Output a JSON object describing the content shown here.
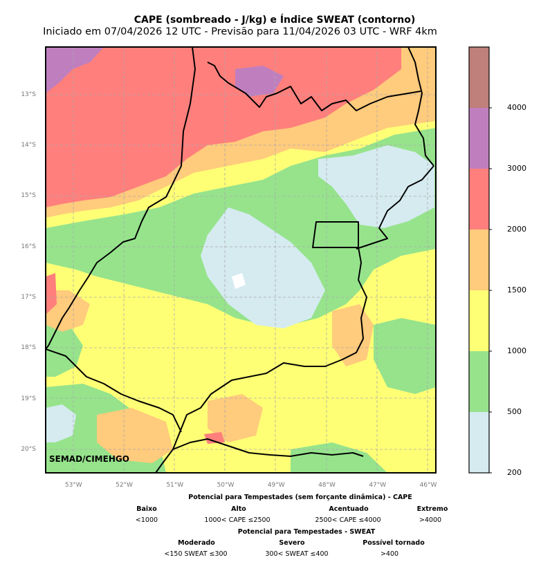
{
  "title": "CAPE (sombreado - J/kg) e Índice SWEAT (contorno)",
  "subtitle": "Iniciado em 07/04/2026 12 UTC - Previsão para 11/04/2026 03 UTC - WRF 4km",
  "watermark": "SEMAD/CIMEHGO",
  "map": {
    "lat_labels": [
      "13°S",
      "14°S",
      "15°S",
      "16°S",
      "17°S",
      "18°S",
      "19°S",
      "20°S"
    ],
    "lon_labels": [
      "53°W",
      "52°W",
      "51°W",
      "50°W",
      "49°W",
      "48°W",
      "47°W",
      "46°W"
    ],
    "lat_values": [
      -13,
      -14,
      -15,
      -16,
      -17,
      -18,
      -19,
      -20
    ],
    "lon_values": [
      -53,
      -52,
      -51,
      -50,
      -49,
      -48,
      -47,
      -46
    ],
    "extent": {
      "lon_min": -53.55,
      "lon_max": -45.85,
      "lat_min": -20.45,
      "lat_max": -12.05
    },
    "gridlines": "dashed gray"
  },
  "colorbar": {
    "levels": [
      200,
      500,
      1000,
      1500,
      2000,
      3000,
      4000
    ],
    "tick_labels": [
      "200",
      "500",
      "1000",
      "1500",
      "2000",
      "3000",
      "4000"
    ],
    "colors": [
      "#d5ebf0",
      "#96e38c",
      "#ffff76",
      "#ffcb7c",
      "#ff7f7c",
      "#bf7fbf",
      "#bf7f7a"
    ]
  },
  "legend": {
    "cape_title": "Potencial para Tempestades (sem forçante dinâmica) - CAPE",
    "cape": [
      {
        "name": "Baixo",
        "range": "<1000"
      },
      {
        "name": "Alto",
        "range": "1000< CAPE ≤2500"
      },
      {
        "name": "Acentuado",
        "range": "2500< CAPE ≤4000"
      },
      {
        "name": "Extremo",
        "range": ">4000"
      }
    ],
    "sweat_title": "Potencial para Tempestades - SWEAT",
    "sweat": [
      {
        "name": "Moderado",
        "range": "<150 SWEAT ≤300"
      },
      {
        "name": "Severo",
        "range": "300< SWEAT ≤400"
      },
      {
        "name": "Possível tornado",
        "range": ">400"
      }
    ]
  }
}
